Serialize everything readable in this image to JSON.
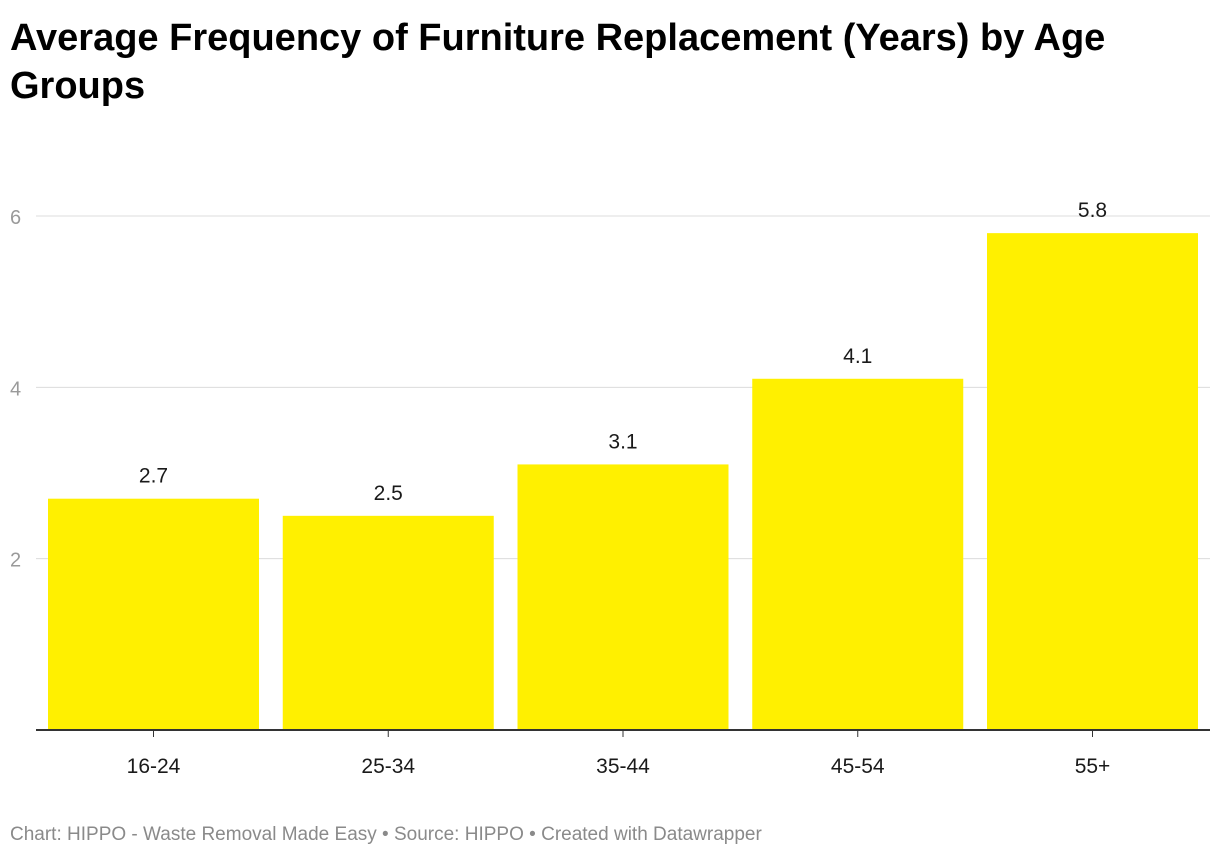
{
  "chart_data": {
    "type": "bar",
    "title": "Average Frequency of Furniture Replacement (Years) by Age Groups",
    "categories": [
      "16-24",
      "25-34",
      "35-44",
      "45-54",
      "55+"
    ],
    "values": [
      2.7,
      2.5,
      3.1,
      4.1,
      5.8
    ],
    "data_labels": [
      "2.7",
      "2.5",
      "3.1",
      "4.1",
      "5.8"
    ],
    "y_ticks": [
      2,
      4,
      6
    ],
    "ylim": [
      0,
      6
    ],
    "xlabel": "",
    "ylabel": "",
    "grid": true,
    "legend": "none",
    "bar_color": "#fff000"
  },
  "footer": {
    "chart_by_label": "Chart: ",
    "chart_by": "HIPPO - Waste Removal Made Easy",
    "separator": " • ",
    "source_label": "Source: ",
    "source": "HIPPO",
    "created_with": "Created with Datawrapper"
  }
}
